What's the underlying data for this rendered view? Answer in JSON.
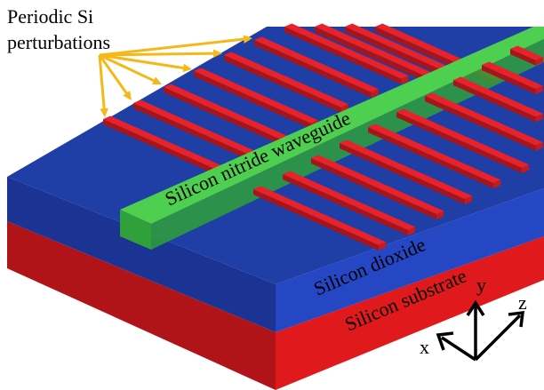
{
  "labels": {
    "perturbations_line1": "Periodic Si",
    "perturbations_line2": "perturbations",
    "waveguide": "Silicon nitride waveguide",
    "oxide": "Silicon dioxide",
    "substrate": "Silicon substrate"
  },
  "axes": {
    "x": "x",
    "y": "y",
    "z": "z"
  },
  "colors": {
    "substrate_front": "#e0191c",
    "substrate_side": "#b01418",
    "oxide_top": "#1f3fa6",
    "oxide_front": "#2547c4",
    "oxide_side": "#1b3494",
    "waveguide_top": "#4fcf4f",
    "waveguide_front": "#2fa03a",
    "perturbation": "#e8222a",
    "perturbation_dark": "#a5151a",
    "arrow": "#f5b818",
    "axis": "#000000"
  }
}
